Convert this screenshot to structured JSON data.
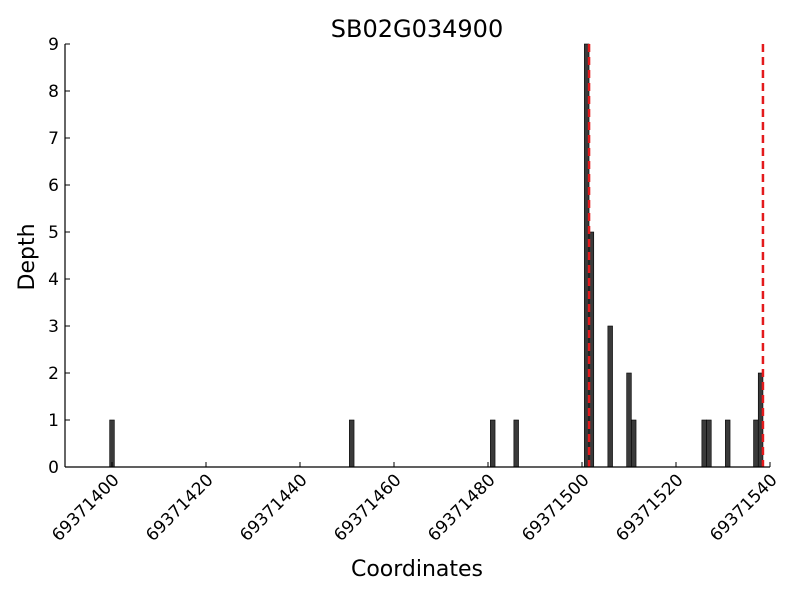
{
  "chart_data": {
    "type": "bar",
    "title": "SB02G034900",
    "xlabel": "Coordinates",
    "ylabel": "Depth",
    "xlim": [
      69371390,
      69371540
    ],
    "ylim": [
      0,
      9
    ],
    "x_ticks": [
      69371400,
      69371420,
      69371440,
      69371460,
      69371480,
      69371500,
      69371520,
      69371540
    ],
    "y_ticks": [
      0,
      1,
      2,
      3,
      4,
      5,
      6,
      7,
      8,
      9
    ],
    "grid": false,
    "bar_color": "#3a3a3a",
    "marker_color": "#e31a1c",
    "x": [
      69371400,
      69371451,
      69371481,
      69371486,
      69371501,
      69371502,
      69371506,
      69371510,
      69371511,
      69371526,
      69371527,
      69371531,
      69371537,
      69371538
    ],
    "values": [
      1,
      1,
      1,
      1,
      9,
      5,
      3,
      2,
      1,
      1,
      1,
      1,
      1,
      2
    ],
    "markers": [
      69371501.5,
      69371538.5
    ]
  }
}
